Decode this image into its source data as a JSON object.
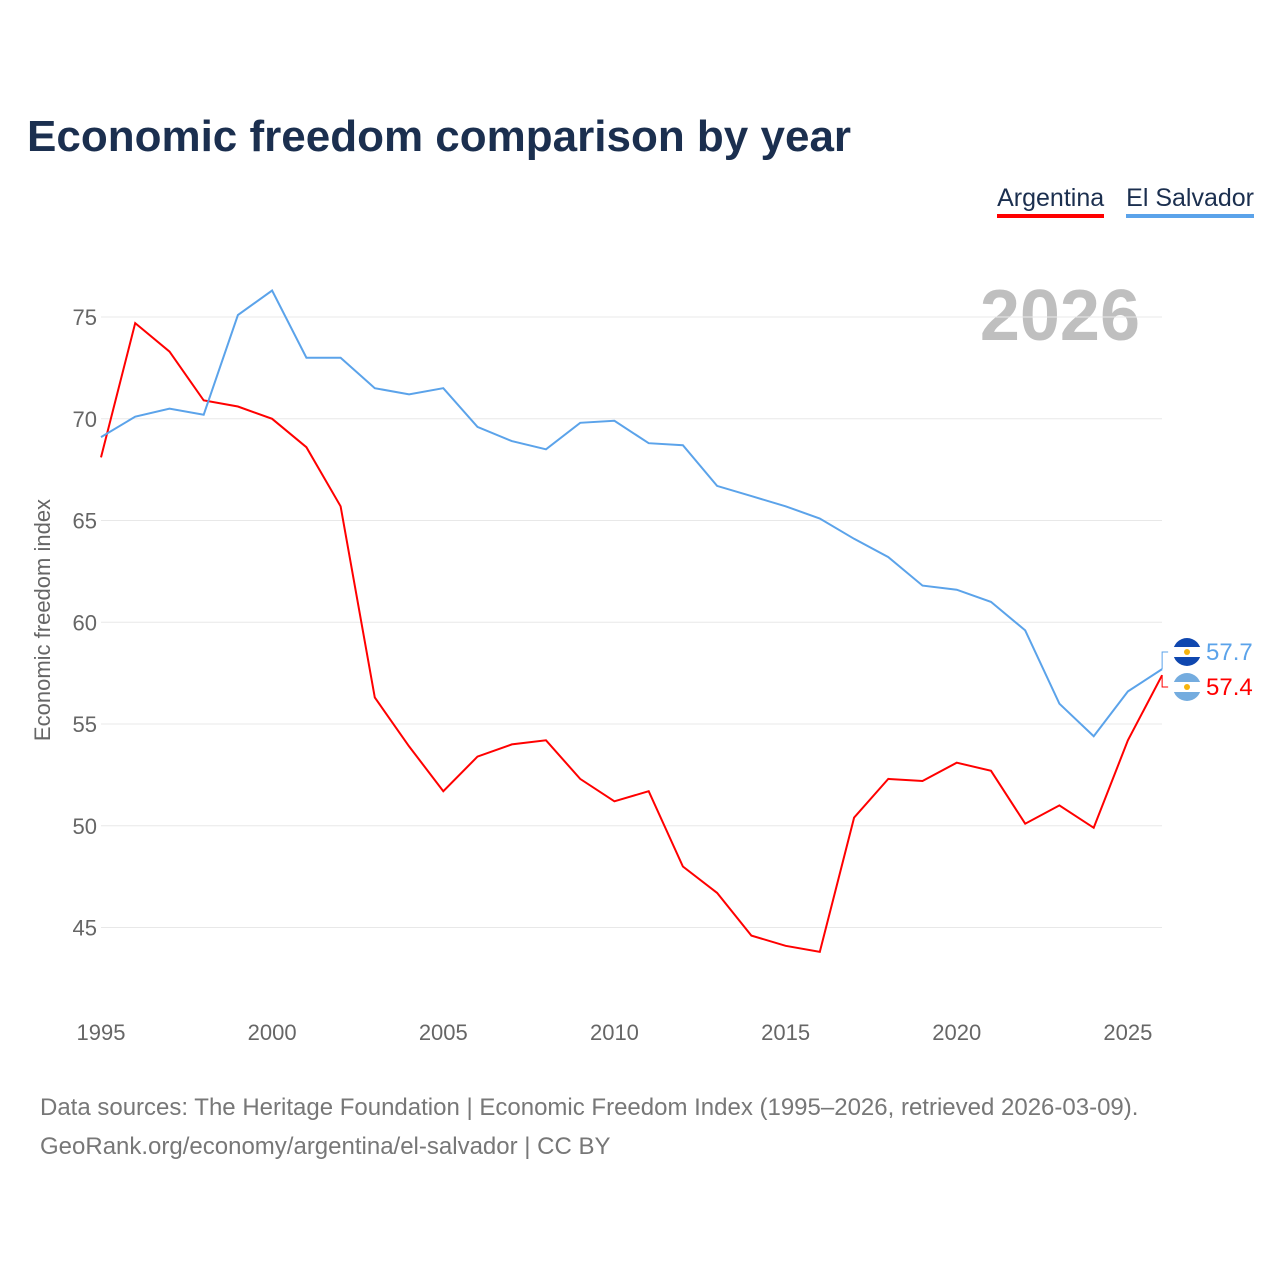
{
  "chart_data": {
    "type": "line",
    "title": "Economic freedom comparison by year",
    "ylabel": "Economic freedom index",
    "xlabel": "",
    "year_watermark": "2026",
    "xlim": [
      1995,
      2026
    ],
    "ylim": [
      41,
      77
    ],
    "xticks": [
      "1995",
      "2000",
      "2005",
      "2010",
      "2015",
      "2020",
      "2025"
    ],
    "yticks": [
      "45",
      "50",
      "55",
      "60",
      "65",
      "70",
      "75"
    ],
    "grid": true,
    "legend_position": "top-right",
    "x": [
      1995,
      1996,
      1997,
      1998,
      1999,
      2000,
      2001,
      2002,
      2003,
      2004,
      2005,
      2006,
      2007,
      2008,
      2009,
      2010,
      2011,
      2012,
      2013,
      2014,
      2015,
      2016,
      2017,
      2018,
      2019,
      2020,
      2021,
      2022,
      2023,
      2024,
      2025,
      2026
    ],
    "series": [
      {
        "name": "Argentina",
        "color": "#ff0000",
        "end_label": "57.4",
        "values": [
          68.1,
          74.7,
          73.3,
          70.9,
          70.6,
          70.0,
          68.6,
          65.7,
          56.3,
          53.9,
          51.7,
          53.4,
          54.0,
          54.2,
          52.3,
          51.2,
          51.7,
          48.0,
          46.7,
          44.6,
          44.1,
          43.8,
          50.4,
          52.3,
          52.2,
          53.1,
          52.7,
          50.1,
          51.0,
          49.9,
          54.2,
          57.4
        ]
      },
      {
        "name": "El Salvador",
        "color": "#5ba3ea",
        "end_label": "57.7",
        "values": [
          69.1,
          70.1,
          70.5,
          70.2,
          75.1,
          76.3,
          73.0,
          73.0,
          71.5,
          71.2,
          71.5,
          69.6,
          68.9,
          68.5,
          69.8,
          69.9,
          68.8,
          68.7,
          66.7,
          66.2,
          65.7,
          65.1,
          64.1,
          63.2,
          61.8,
          61.6,
          61.0,
          59.6,
          56.0,
          54.4,
          56.6,
          57.7
        ]
      }
    ]
  },
  "footer": {
    "line1": "Data sources: The Heritage Foundation | Economic Freedom Index (1995–2026, retrieved 2026-03-09).",
    "line2": "GeoRank.org/economy/argentina/el-salvador | CC BY"
  }
}
